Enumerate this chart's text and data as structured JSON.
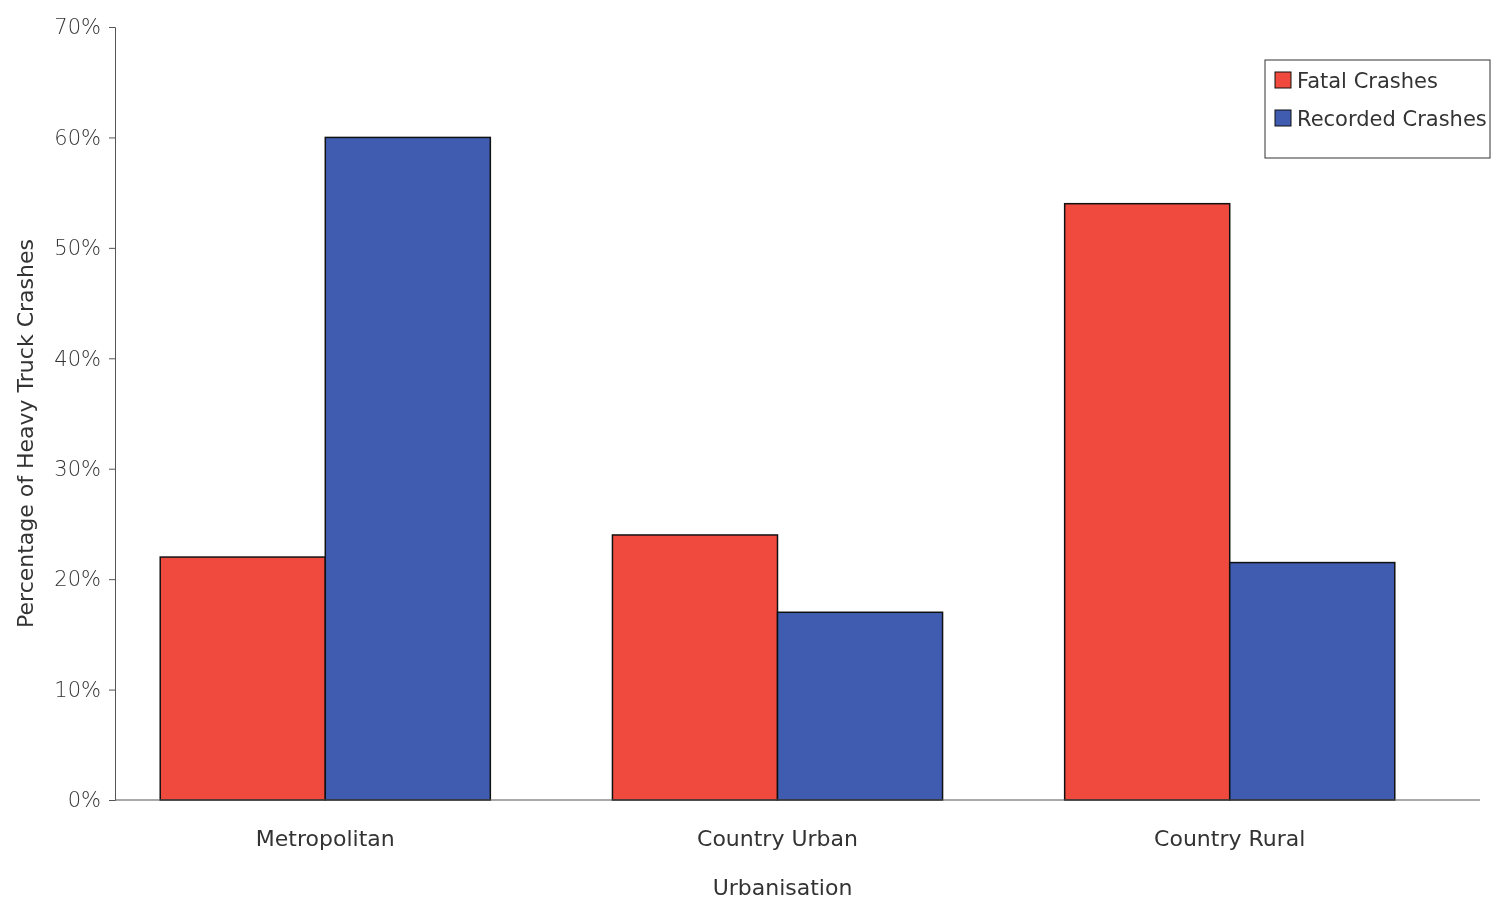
{
  "chart_data": {
    "type": "bar",
    "xlabel": "Urbanisation",
    "ylabel": "Percentage of Heavy Truck Crashes",
    "categories": [
      "Metropolitan",
      "Country Urban",
      "Country Rural"
    ],
    "series": [
      {
        "name": "Fatal Crashes",
        "color": "#f04a3e",
        "values": [
          22,
          24,
          54
        ]
      },
      {
        "name": "Recorded Crashes",
        "color": "#3f5cb0",
        "values": [
          60,
          17,
          21.5
        ]
      }
    ],
    "ylim": [
      0,
      70
    ],
    "yticks": [
      {
        "value": 0,
        "label": "0%"
      },
      {
        "value": 10,
        "label": "10%"
      },
      {
        "value": 20,
        "label": "20%"
      },
      {
        "value": 30,
        "label": "30%"
      },
      {
        "value": 40,
        "label": "40%"
      },
      {
        "value": 50,
        "label": "50%"
      },
      {
        "value": 60,
        "label": "60%"
      },
      {
        "value": 70,
        "label": "70%"
      }
    ],
    "grid": false,
    "legend": "top right"
  }
}
